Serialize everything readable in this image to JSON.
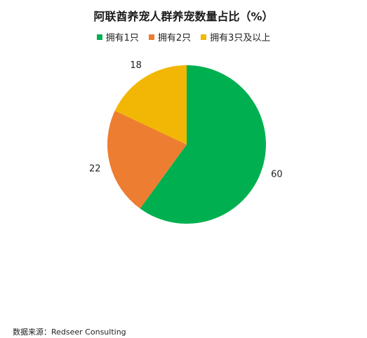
{
  "chart_data": {
    "type": "pie",
    "title": "阿联酋养宠人群养宠数量占比（%）",
    "categories": [
      "拥有1只",
      "拥有2只",
      "拥有3只及以上"
    ],
    "values": [
      60,
      22,
      18
    ],
    "colors": [
      "#00b050",
      "#ed7d31",
      "#f2b705"
    ],
    "legend_position": "top"
  },
  "footer": {
    "source": "数据来源：Redseer Consulting"
  }
}
